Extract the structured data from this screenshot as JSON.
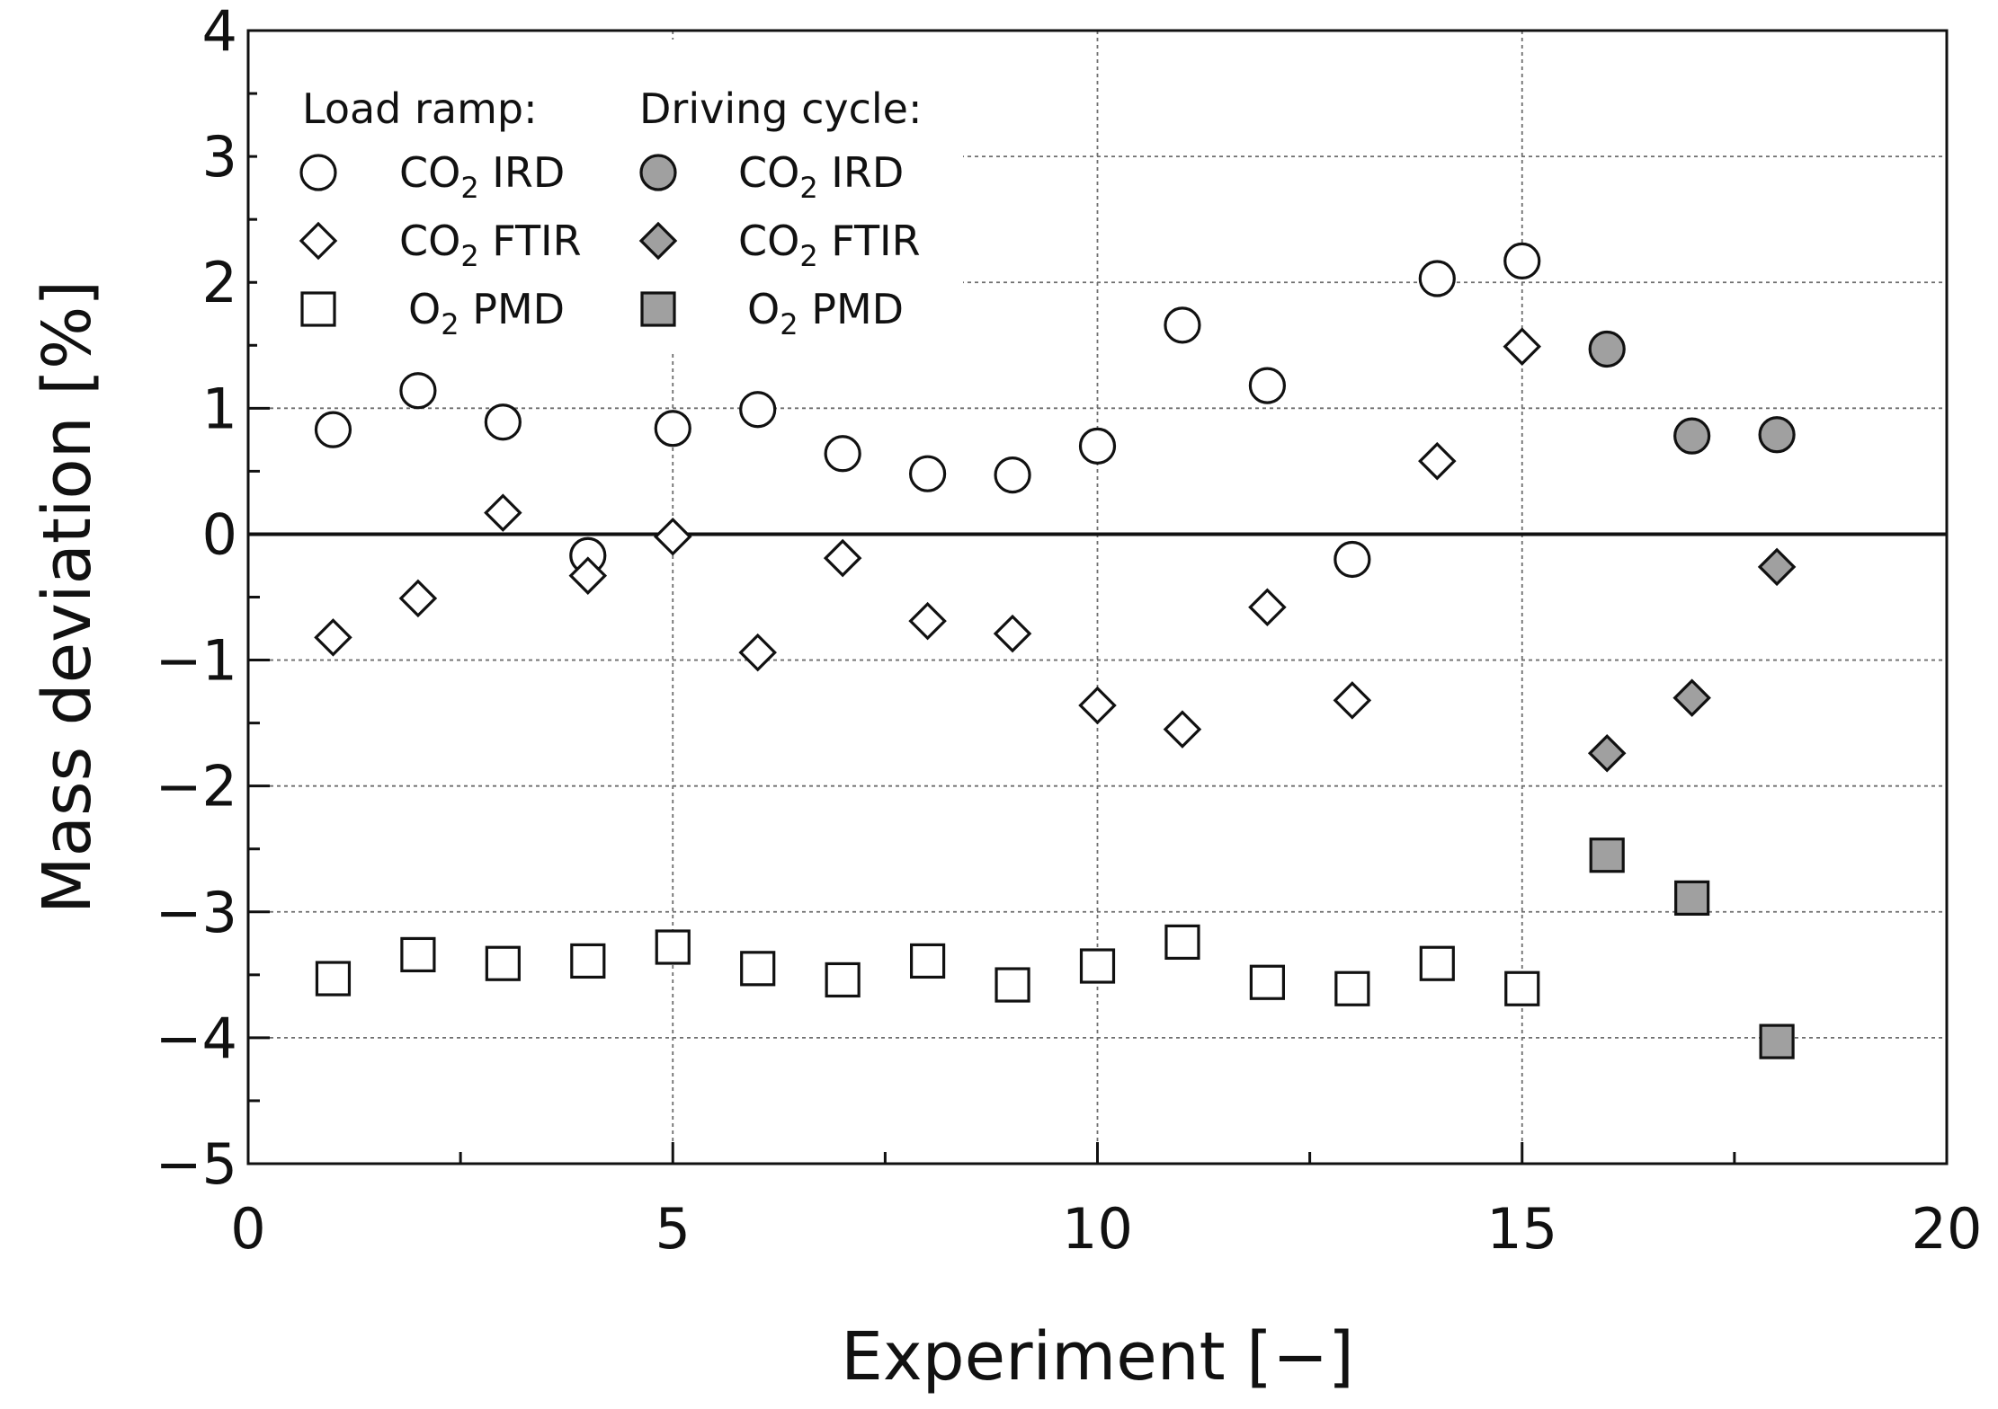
{
  "chart_data": {
    "type": "scatter",
    "xlabel": "Experiment [−]",
    "ylabel": "Mass deviation [%]",
    "xlim": [
      0,
      20
    ],
    "ylim": [
      -5,
      4
    ],
    "x_major_ticks": [
      0,
      5,
      10,
      15,
      20
    ],
    "x_tick_labels": [
      "0",
      "5",
      "10",
      "15",
      "20"
    ],
    "y_major_ticks": [
      4,
      3,
      2,
      1,
      0,
      -1,
      -2,
      -3,
      -4,
      -5
    ],
    "y_tick_labels": [
      "4",
      "3",
      "2",
      "1",
      "0",
      "−1",
      "−2",
      "−3",
      "−4",
      "−5"
    ],
    "grid": true,
    "reference_line_y": 0,
    "legend": {
      "placement": "top-left",
      "group_titles": [
        "Load ramp:",
        "Driving cycle:"
      ],
      "entries": [
        {
          "series": "lr_co2_ird",
          "label": "CO",
          "sub": "2",
          "rest": " IRD"
        },
        {
          "series": "lr_co2_ftir",
          "label": "CO",
          "sub": "2",
          "rest": " FTIR"
        },
        {
          "series": "lr_o2_pmd",
          "label": "O",
          "sub": "2",
          "rest": " PMD"
        },
        {
          "series": "dc_co2_ird",
          "label": "CO",
          "sub": "2",
          "rest": " IRD"
        },
        {
          "series": "dc_co2_ftir",
          "label": "CO",
          "sub": "2",
          "rest": " FTIR"
        },
        {
          "series": "dc_o2_pmd",
          "label": "O",
          "sub": "2",
          "rest": " PMD"
        }
      ]
    },
    "series": [
      {
        "id": "lr_co2_ird",
        "name": "Load ramp: CO2 IRD",
        "marker": "circle",
        "fill": "open",
        "x": [
          1,
          2,
          3,
          4,
          5,
          6,
          7,
          8,
          9,
          10,
          11,
          12,
          13,
          14,
          15
        ],
        "y": [
          0.83,
          1.14,
          0.89,
          -0.17,
          0.84,
          0.99,
          0.64,
          0.48,
          0.47,
          0.7,
          1.66,
          1.18,
          -0.2,
          2.03,
          2.17
        ]
      },
      {
        "id": "lr_co2_ftir",
        "name": "Load ramp: CO2 FTIR",
        "marker": "diamond",
        "fill": "open",
        "x": [
          1,
          2,
          3,
          4,
          5,
          6,
          7,
          8,
          9,
          10,
          11,
          12,
          13,
          14,
          15
        ],
        "y": [
          -0.82,
          -0.51,
          0.17,
          -0.33,
          -0.02,
          -0.94,
          -0.19,
          -0.69,
          -0.79,
          -1.36,
          -1.55,
          -0.58,
          -1.32,
          0.58,
          1.49
        ]
      },
      {
        "id": "lr_o2_pmd",
        "name": "Load ramp: O2 PMD",
        "marker": "square",
        "fill": "open",
        "x": [
          1,
          2,
          3,
          4,
          5,
          6,
          7,
          8,
          9,
          10,
          11,
          12,
          13,
          14,
          15
        ],
        "y": [
          -3.53,
          -3.34,
          -3.41,
          -3.39,
          -3.28,
          -3.45,
          -3.54,
          -3.39,
          -3.58,
          -3.43,
          -3.24,
          -3.56,
          -3.61,
          -3.41,
          -3.61
        ]
      },
      {
        "id": "dc_co2_ird",
        "name": "Driving cycle: CO2 IRD",
        "marker": "circle",
        "fill": "filled",
        "x": [
          16,
          17,
          18
        ],
        "y": [
          1.47,
          0.78,
          0.79
        ]
      },
      {
        "id": "dc_co2_ftir",
        "name": "Driving cycle: CO2 FTIR",
        "marker": "diamond",
        "fill": "filled",
        "x": [
          16,
          17,
          18
        ],
        "y": [
          -1.74,
          -1.3,
          -0.26
        ]
      },
      {
        "id": "dc_o2_pmd",
        "name": "Driving cycle: O2 PMD",
        "marker": "square",
        "fill": "filled",
        "x": [
          16,
          17,
          18
        ],
        "y": [
          -2.55,
          -2.89,
          -4.03
        ]
      }
    ],
    "colors": {
      "open_fill": "#ffffff",
      "filled_fill": "#a0a0a0",
      "stroke": "#111111"
    }
  }
}
